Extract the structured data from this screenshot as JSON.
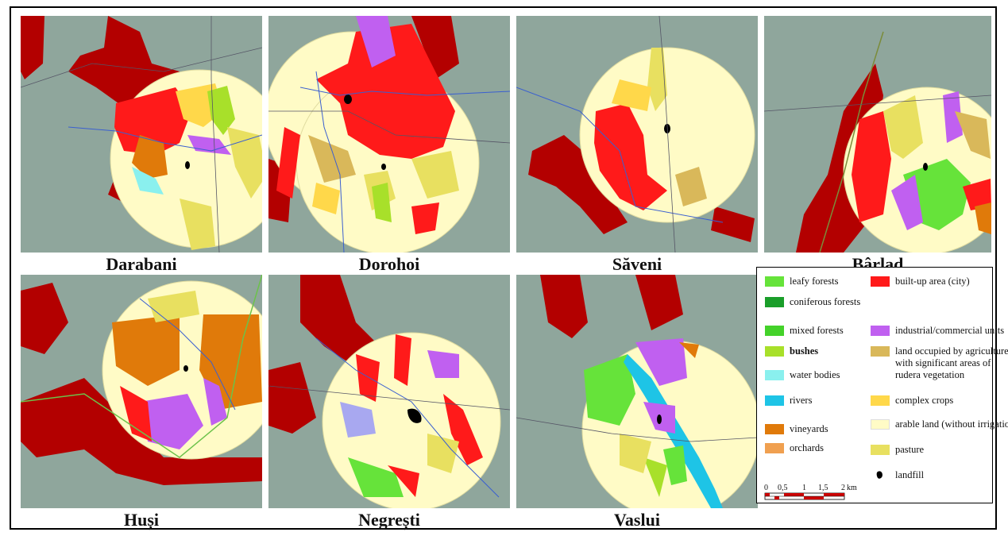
{
  "colors": {
    "terrain": "#8fa69c",
    "terrain_dark": "#6f887f",
    "city_outline": "#b30000",
    "buffer": "#fffbc6",
    "river_line": "#3a5fd0"
  },
  "panels": [
    {
      "name": "Darabani"
    },
    {
      "name": "Dorohoi"
    },
    {
      "name": "Săveni"
    },
    {
      "name": "Bârlad"
    },
    {
      "name": "Huși"
    },
    {
      "name": "Negrești"
    },
    {
      "name": "Vaslui"
    }
  ],
  "legend": {
    "left": [
      {
        "label": "leafy forests",
        "color": "#66e33a"
      },
      {
        "label": "coniferous forests",
        "color": "#1a9e2a"
      },
      {
        "label": "mixed forests",
        "color": "#44d22a"
      },
      {
        "label": "bushes",
        "color": "#a8e02a"
      },
      {
        "label": "water bodies",
        "color": "#8af0ee"
      },
      {
        "label": "rivers",
        "color": "#1ec4e6"
      },
      {
        "label": "vineyards",
        "color": "#e07a0a"
      },
      {
        "label": "orchards",
        "color": "#f0a050"
      }
    ],
    "right": [
      {
        "label": "built-up area (city)",
        "color": "#ff1a1a"
      },
      {
        "label": "industrial/commercial units",
        "color": "#c060f0"
      },
      {
        "label": "land occupied by agriculture with significant areas of rudera vegetation",
        "lines": [
          "land occupied by agriculture",
          "with significant areas of",
          "rudera vegetation"
        ],
        "color": "#d9b85a"
      },
      {
        "label": "complex crops",
        "color": "#ffd84a"
      },
      {
        "label": "arable land (without irrigation)",
        "color": "#fffbc6"
      },
      {
        "label": "pasture",
        "color": "#e8e060"
      },
      {
        "label": "landfill",
        "color": "#000000",
        "shape": "blob"
      }
    ],
    "scale": {
      "ticks": [
        "0",
        "0,5",
        "1",
        "1,5",
        "2"
      ],
      "unit": "km"
    }
  }
}
